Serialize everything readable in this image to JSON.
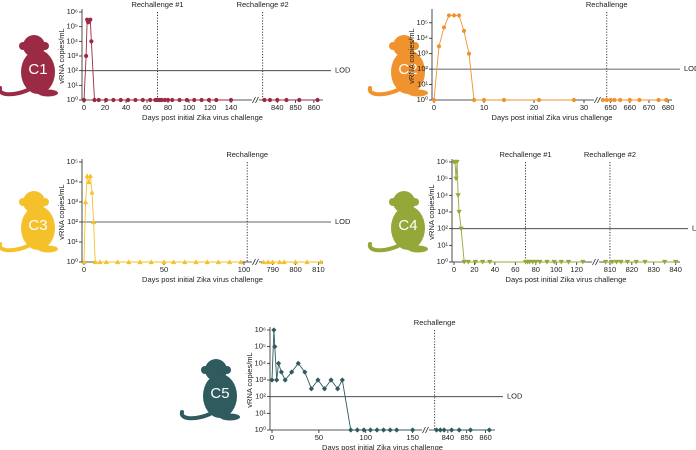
{
  "chart_data": [
    {
      "type": "line",
      "animal": "C1",
      "color": "#9b2a45",
      "marker": "circle",
      "log_scale": true,
      "ylabel": "vRNA copies/mL",
      "xlabel": "Days post initial Zika virus challenge",
      "ylim": [
        1,
        1000000
      ],
      "yticks": [
        {
          "value": 1,
          "label": "10⁰"
        },
        {
          "value": 10,
          "label": "10¹"
        },
        {
          "value": 100,
          "label": "10²"
        },
        {
          "value": 1000,
          "label": "10³"
        },
        {
          "value": 10000,
          "label": "10⁴"
        },
        {
          "value": 100000,
          "label": "10⁵"
        },
        {
          "value": 1000000,
          "label": "10⁶"
        }
      ],
      "segments": [
        {
          "xlim": [
            0,
            160
          ],
          "xticks": [
            0,
            20,
            40,
            60,
            80,
            100,
            120,
            140
          ]
        },
        {
          "xlim": [
            830,
            865
          ],
          "xticks": [
            840,
            850,
            860
          ]
        }
      ],
      "lod": 100,
      "lod_label": "LOD",
      "rechallenges": [
        {
          "x": 70,
          "label": "Rechallenge #1"
        },
        {
          "x": 832,
          "label": "Rechallenge #2"
        }
      ],
      "x": [
        0,
        2,
        3,
        4,
        6,
        7,
        10,
        14,
        21,
        28,
        35,
        42,
        49,
        56,
        63,
        68,
        70,
        72,
        74,
        77,
        80,
        84,
        91,
        98,
        105,
        112,
        119,
        126,
        140,
        833,
        836,
        840,
        845,
        852,
        862
      ],
      "values": [
        1,
        1000,
        300000,
        200000,
        300000,
        10000,
        1,
        1,
        1,
        1,
        1,
        1,
        1,
        1,
        1,
        1,
        1,
        1,
        1,
        1,
        1,
        1,
        1,
        1,
        1,
        1,
        1,
        1,
        1,
        1,
        1,
        1,
        1,
        1,
        1
      ]
    },
    {
      "type": "line",
      "animal": "C2",
      "color": "#f0922e",
      "marker": "circle",
      "log_scale": true,
      "ylabel": "vRNA copies/mL",
      "xlabel": "Days post initial Zika virus challenge",
      "ylim": [
        1,
        500000
      ],
      "yticks": [
        {
          "value": 1,
          "label": "10⁰"
        },
        {
          "value": 10,
          "label": "10¹"
        },
        {
          "value": 100,
          "label": "10²"
        },
        {
          "value": 1000,
          "label": "10³"
        },
        {
          "value": 10000,
          "label": "10⁴"
        },
        {
          "value": 100000,
          "label": "10⁵"
        }
      ],
      "segments": [
        {
          "xlim": [
            0,
            32
          ],
          "xticks": [
            0,
            10,
            20,
            30
          ]
        },
        {
          "xlim": [
            645,
            682
          ],
          "xticks": [
            650,
            660,
            670,
            680
          ]
        }
      ],
      "lod": 100,
      "lod_label": "LOD",
      "rechallenges": [
        {
          "x": 648,
          "label": "Rechallenge"
        }
      ],
      "x": [
        0,
        1,
        2,
        3,
        4,
        5,
        6,
        7,
        8,
        10,
        14,
        21,
        28,
        646,
        648,
        650,
        652,
        655,
        660,
        665,
        675,
        679
      ],
      "values": [
        1,
        3000,
        50000,
        300000,
        300000,
        300000,
        30000,
        1000,
        1,
        1,
        1,
        1,
        1,
        1,
        1,
        1,
        1,
        1,
        1,
        1,
        1,
        1
      ]
    },
    {
      "type": "line",
      "animal": "C3",
      "color": "#f5c12a",
      "marker": "triangle-up",
      "log_scale": true,
      "ylabel": "vRNA copies/mL",
      "xlabel": "Days post initial Zika virus challenge",
      "ylim": [
        1,
        100000
      ],
      "yticks": [
        {
          "value": 1,
          "label": "10⁰"
        },
        {
          "value": 10,
          "label": "10¹"
        },
        {
          "value": 100,
          "label": "10²"
        },
        {
          "value": 1000,
          "label": "10³"
        },
        {
          "value": 10000,
          "label": "10⁴"
        },
        {
          "value": 100000,
          "label": "10⁵"
        }
      ],
      "segments": [
        {
          "xlim": [
            0,
            105
          ],
          "xticks": [
            0,
            50,
            100
          ]
        },
        {
          "xlim": [
            784,
            812
          ],
          "xticks": [
            790,
            800,
            810
          ]
        }
      ],
      "lod": 100,
      "lod_label": "LOD",
      "rechallenges": [
        {
          "x": 102,
          "label": "Rechallenge"
        }
      ],
      "x": [
        0,
        1,
        2,
        3,
        4,
        5,
        6,
        7,
        10,
        14,
        21,
        28,
        35,
        42,
        50,
        56,
        63,
        70,
        77,
        84,
        91,
        98,
        786,
        788,
        790,
        793,
        795,
        800,
        805,
        811
      ],
      "values": [
        1,
        1000,
        20000,
        10000,
        20000,
        3000,
        100,
        1,
        1,
        1,
        1,
        1,
        1,
        1,
        1,
        1,
        1,
        1,
        1,
        1,
        1,
        1,
        1,
        1,
        1,
        1,
        1,
        1,
        1,
        1
      ]
    },
    {
      "type": "line",
      "animal": "C4",
      "color": "#94a83a",
      "marker": "triangle-down",
      "log_scale": true,
      "ylabel": "vRNA copies/mL",
      "xlabel": "Days post initial Zika virus challenge",
      "ylim": [
        1,
        1000000
      ],
      "yticks": [
        {
          "value": 1,
          "label": "10⁰"
        },
        {
          "value": 10,
          "label": "10¹"
        },
        {
          "value": 100,
          "label": "10²"
        },
        {
          "value": 1000,
          "label": "10³"
        },
        {
          "value": 10000,
          "label": "10⁴"
        },
        {
          "value": 100000,
          "label": "10⁵"
        },
        {
          "value": 1000000,
          "label": "10⁶"
        }
      ],
      "segments": [
        {
          "xlim": [
            0,
            135
          ],
          "xticks": [
            0,
            20,
            40,
            60,
            80,
            100,
            120
          ]
        },
        {
          "xlim": [
            805,
            842
          ],
          "xticks": [
            810,
            820,
            830,
            840
          ]
        }
      ],
      "lod": 100,
      "lod_label": "LOD",
      "rechallenges": [
        {
          "x": 70,
          "label": "Rechallenge #1"
        },
        {
          "x": 810,
          "label": "Rechallenge #2"
        }
      ],
      "x": [
        0,
        1,
        2,
        3,
        4,
        5,
        7,
        10,
        14,
        21,
        28,
        35,
        70,
        72,
        74,
        77,
        80,
        84,
        91,
        98,
        105,
        112,
        126,
        808,
        811,
        813,
        815,
        818,
        822,
        826,
        835,
        840
      ],
      "values": [
        1000000,
        1000000,
        100000,
        1000000,
        10000,
        1000,
        100,
        1,
        1,
        1,
        1,
        1,
        1,
        1,
        1,
        1,
        1,
        1,
        1,
        1,
        1,
        1,
        1,
        1,
        1,
        1,
        1,
        1,
        1,
        1,
        1,
        1
      ]
    },
    {
      "type": "line",
      "animal": "C5",
      "color": "#2f5b5e",
      "marker": "diamond",
      "log_scale": true,
      "ylabel": "vRNA copies/mL",
      "xlabel": "Days post initial Zika virus challenge",
      "ylim": [
        1,
        1000000
      ],
      "yticks": [
        {
          "value": 1,
          "label": "10⁰"
        },
        {
          "value": 10,
          "label": "10¹"
        },
        {
          "value": 100,
          "label": "10²"
        },
        {
          "value": 1000,
          "label": "10³"
        },
        {
          "value": 10000,
          "label": "10⁴"
        },
        {
          "value": 100000,
          "label": "10⁵"
        },
        {
          "value": 1000000,
          "label": "10⁶"
        }
      ],
      "segments": [
        {
          "xlim": [
            0,
            160
          ],
          "xticks": [
            0,
            50,
            100,
            150
          ]
        },
        {
          "xlim": [
            830,
            865
          ],
          "xticks": [
            840,
            850,
            860
          ]
        }
      ],
      "lod": 100,
      "lod_label": "LOD",
      "rechallenges": [
        {
          "x": 833,
          "label": "Rechallenge"
        }
      ],
      "x": [
        0,
        2,
        3,
        5,
        7,
        10,
        14,
        21,
        28,
        35,
        42,
        49,
        56,
        63,
        70,
        75,
        84,
        91,
        98,
        105,
        112,
        119,
        126,
        133,
        150,
        834,
        836,
        838,
        842,
        846,
        852,
        862
      ],
      "values": [
        1000,
        1000000,
        100000,
        1000,
        10000,
        3000,
        1000,
        3000,
        10000,
        3000,
        300,
        1000,
        300,
        1000,
        300,
        1000,
        1,
        1,
        1,
        1,
        1,
        1,
        1,
        1,
        1,
        1,
        1,
        1,
        1,
        1,
        1,
        1
      ]
    }
  ]
}
